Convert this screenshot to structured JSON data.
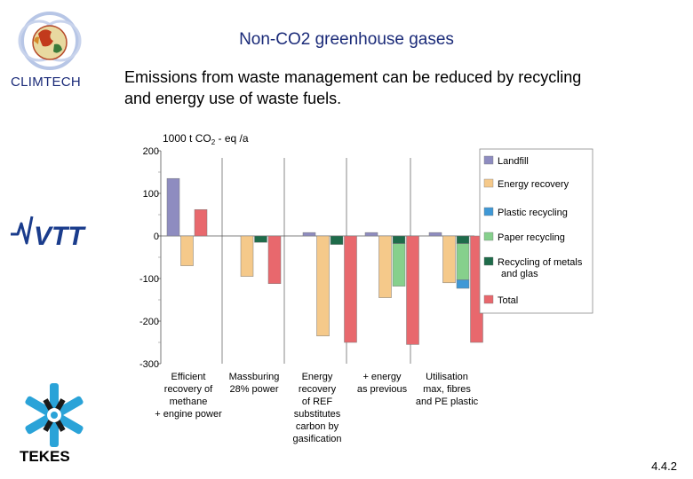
{
  "header": {
    "title": "Non-CO2 greenhouse gases",
    "subtitle_line1": "Emissions from waste management can be reduced by recycling",
    "subtitle_line2": "and energy use of waste fuels."
  },
  "logos": {
    "climtech": "CLIMTECH",
    "tekes": "TEKES",
    "vtt": "VTT"
  },
  "footer": {
    "page_number": "4.4.2"
  },
  "colors": {
    "Landfill": "#8e8cc0",
    "Energy recovery": "#f5c98a",
    "Plastic recycling": "#3f98d6",
    "Paper recycling": "#86d08c",
    "Recycling of metals and glas": "#1e6b4a",
    "Total": "#e8686d"
  },
  "chart_data": {
    "type": "bar",
    "stacked_within_group": false,
    "ylabel_parts": [
      "1000 t CO",
      "2",
      " - eq /a"
    ],
    "ylim": [
      -300,
      200
    ],
    "yticks": [
      200,
      100,
      0,
      -100,
      -200,
      -300
    ],
    "ytick_labels": [
      "200",
      "100",
      "0",
      "-100",
      "-200",
      "-300"
    ],
    "categories": [
      [
        "Efficient",
        "recovery of",
        "methane",
        "+ engine power"
      ],
      [
        "Massburing",
        "28% power"
      ],
      [
        "Energy",
        "recovery",
        "of REF",
        "substitutes",
        "carbon by",
        "gasification"
      ],
      [
        "+ energy",
        "as previous"
      ],
      [
        "Utilisation",
        "max, fibres",
        "and PE plastic"
      ]
    ],
    "groups": [
      {
        "bars": [
          {
            "series": "Landfill",
            "value": 135
          },
          {
            "series": "Energy recovery",
            "value": -70
          },
          {
            "series": "Total",
            "value": 62
          }
        ]
      },
      {
        "bars": [
          {
            "series": "Energy recovery",
            "value": -95
          },
          {
            "series": "Recycling of metals and glas",
            "value": -15
          },
          {
            "series": "Total",
            "value": -112
          }
        ]
      },
      {
        "bars": [
          {
            "series": "Landfill",
            "value": 8
          },
          {
            "series": "Energy recovery",
            "value": -235
          },
          {
            "series": "Recycling of metals and glas",
            "value": -20
          },
          {
            "series": "Total",
            "value": -250
          }
        ]
      },
      {
        "bars": [
          {
            "series": "Landfill",
            "value": 8
          },
          {
            "series": "Energy recovery",
            "value": -145
          },
          {
            "series": "Recycling of metals and glas",
            "value": -18,
            "stack": [
              {
                "series": "Paper recycling",
                "value": -100
              }
            ]
          },
          {
            "series": "Total",
            "value": -255
          }
        ]
      },
      {
        "bars": [
          {
            "series": "Landfill",
            "value": 8
          },
          {
            "series": "Energy recovery",
            "value": -110
          },
          {
            "series": "Recycling of metals and glas",
            "value": -18,
            "stack": [
              {
                "series": "Paper recycling",
                "value": -85
              },
              {
                "series": "Plastic recycling",
                "value": -20
              }
            ]
          },
          {
            "series": "Total",
            "value": -250
          }
        ]
      }
    ],
    "legend": [
      "Landfill",
      "Energy recovery",
      "Plastic recycling",
      "Paper recycling",
      "Recycling of metals and glas",
      "Total"
    ],
    "legend_lines": [
      [
        "Landfill"
      ],
      [
        "Energy recovery"
      ],
      [
        "Plastic recycling"
      ],
      [
        "Paper recycling"
      ],
      [
        "Recycling of metals",
        "and glas"
      ],
      [
        "Total"
      ]
    ],
    "legend_position": "right"
  }
}
